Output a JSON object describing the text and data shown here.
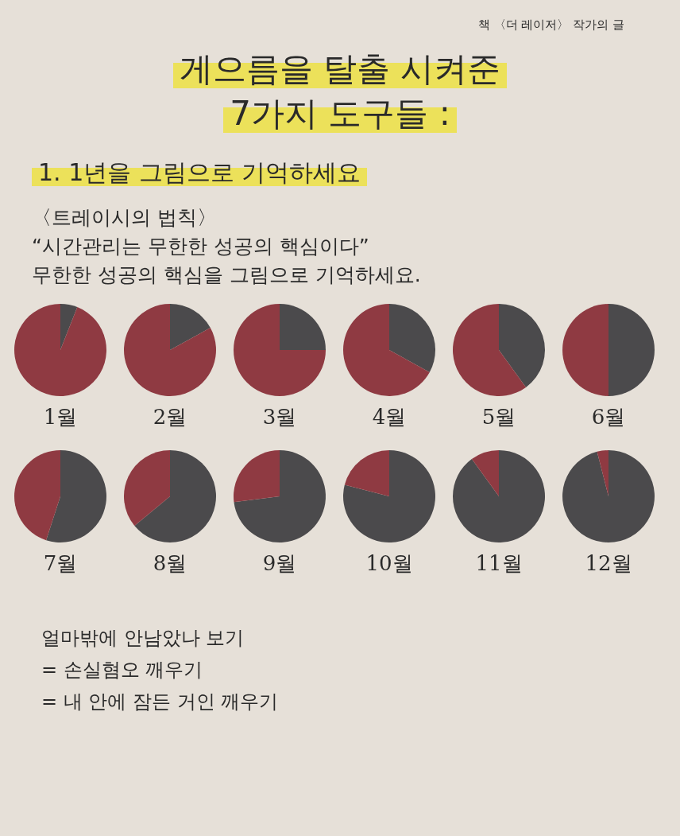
{
  "chart_data": [
    {
      "type": "other",
      "title": "게으름을 탈출 시켜준 7가지 도구들 :",
      "subtitle": "1. 1년을 그림으로 기억하세요",
      "annotations": [
        "책 〈더 레이저〉 작가의 글",
        "〈트레이시의 법칙〉",
        "“시간관리는 무한한 성공의 핵심이다”",
        "무한한 성공의 핵심을 그림으로 기억하세요."
      ]
    },
    {
      "type": "pie",
      "title": "1월",
      "categories": [
        null,
        null
      ],
      "values": [
        6,
        94
      ],
      "colors": [
        "#4b4a4c",
        "#8f3a42"
      ]
    },
    {
      "type": "pie",
      "title": "2월",
      "categories": [
        null,
        null
      ],
      "values": [
        17,
        83
      ],
      "colors": [
        "#4b4a4c",
        "#8f3a42"
      ]
    },
    {
      "type": "pie",
      "title": "3월",
      "categories": [
        null,
        null
      ],
      "values": [
        25,
        75
      ],
      "colors": [
        "#4b4a4c",
        "#8f3a42"
      ]
    },
    {
      "type": "pie",
      "title": "4월",
      "categories": [
        null,
        null
      ],
      "values": [
        33,
        67
      ],
      "colors": [
        "#4b4a4c",
        "#8f3a42"
      ]
    },
    {
      "type": "pie",
      "title": "5월",
      "categories": [
        null,
        null
      ],
      "values": [
        40,
        60
      ],
      "colors": [
        "#4b4a4c",
        "#8f3a42"
      ]
    },
    {
      "type": "pie",
      "title": "6월",
      "categories": [
        null,
        null
      ],
      "values": [
        50,
        50
      ],
      "colors": [
        "#4b4a4c",
        "#8f3a42"
      ]
    },
    {
      "type": "pie",
      "title": "7월",
      "categories": [
        null,
        null
      ],
      "values": [
        55,
        45
      ],
      "colors": [
        "#4b4a4c",
        "#8f3a42"
      ]
    },
    {
      "type": "pie",
      "title": "8월",
      "categories": [
        null,
        null
      ],
      "values": [
        64,
        36
      ],
      "colors": [
        "#4b4a4c",
        "#8f3a42"
      ]
    },
    {
      "type": "pie",
      "title": "9월",
      "categories": [
        null,
        null
      ],
      "values": [
        73,
        27
      ],
      "colors": [
        "#4b4a4c",
        "#8f3a42"
      ]
    },
    {
      "type": "pie",
      "title": "10월",
      "categories": [
        null,
        null
      ],
      "values": [
        79,
        21
      ],
      "colors": [
        "#4b4a4c",
        "#8f3a42"
      ]
    },
    {
      "type": "pie",
      "title": "11월",
      "categories": [
        null,
        null
      ],
      "values": [
        90,
        10
      ],
      "colors": [
        "#4b4a4c",
        "#8f3a42"
      ]
    },
    {
      "type": "pie",
      "title": "12월",
      "categories": [
        null,
        null
      ],
      "values": [
        96,
        4
      ],
      "colors": [
        "#4b4a4c",
        "#8f3a42"
      ]
    },
    {
      "type": "other",
      "annotations": [
        "얼마밖에 안남았나 보기",
        "= 손실혐오 깨우기",
        "= 내 안에 잠든 거인 깨우기"
      ]
    }
  ]
}
